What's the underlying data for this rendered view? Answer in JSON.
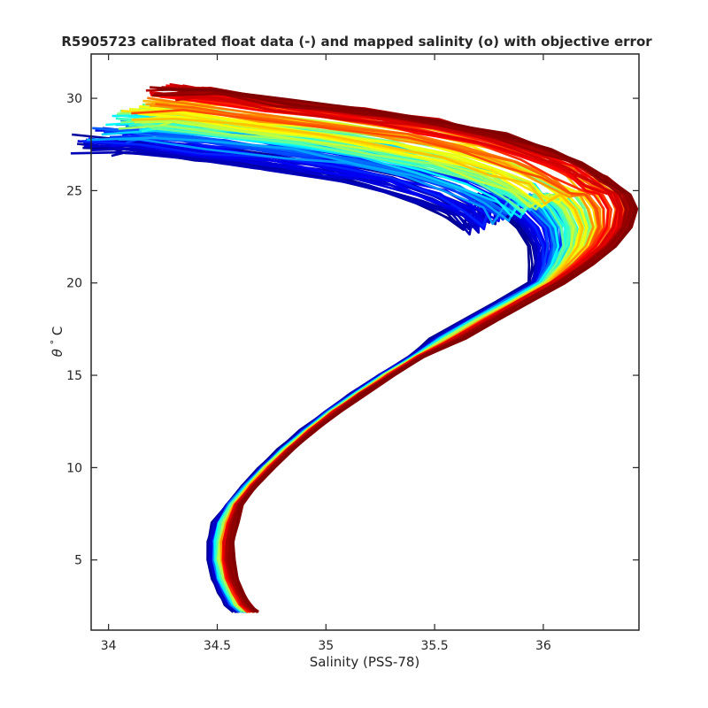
{
  "chart_data": {
    "type": "line",
    "title": "R5905723 calibrated float data (-) and mapped salinity (o) with objective error",
    "xlabel": "Salinity (PSS-78)",
    "ylabel_symbol": "θ",
    "ylabel_degree": "°",
    "ylabel_unit": "C",
    "xlim": [
      33.92,
      36.44
    ],
    "ylim": [
      1.2,
      32.4
    ],
    "xticks": [
      "34",
      "34.5",
      "35",
      "35.5",
      "36"
    ],
    "xtick_values": [
      34,
      34.5,
      35,
      35.5,
      36
    ],
    "yticks": [
      "5",
      "10",
      "15",
      "20",
      "25",
      "30"
    ],
    "ytick_values": [
      5,
      10,
      15,
      20,
      25,
      30
    ],
    "grid": false,
    "legend": "none",
    "colormap": "jet",
    "colormap_stops": [
      "#00008f",
      "#0000ff",
      "#00ffff",
      "#ffff00",
      "#ff0000",
      "#800000"
    ],
    "profile_count": 120,
    "deep_profile": [
      [
        34.64,
        2.2
      ],
      [
        34.6,
        2.6
      ],
      [
        34.57,
        3.2
      ],
      [
        34.54,
        4.0
      ],
      [
        34.52,
        5.0
      ],
      [
        34.52,
        6.0
      ],
      [
        34.54,
        7.0
      ],
      [
        34.58,
        8.0
      ],
      [
        34.65,
        9.0
      ],
      [
        34.73,
        10.0
      ],
      [
        34.82,
        11.0
      ],
      [
        34.92,
        12.0
      ],
      [
        35.03,
        13.0
      ],
      [
        35.15,
        14.0
      ],
      [
        35.28,
        15.0
      ],
      [
        35.42,
        16.0
      ],
      [
        35.57,
        17.0
      ],
      [
        35.72,
        18.0
      ],
      [
        35.87,
        19.0
      ],
      [
        36.02,
        20.0
      ],
      [
        36.15,
        21.0
      ],
      [
        36.26,
        22.0
      ],
      [
        36.33,
        23.0
      ],
      [
        36.35,
        24.0
      ],
      [
        36.33,
        24.8
      ]
    ],
    "upper_profile_start": [
      [
        36.33,
        24.8
      ],
      [
        36.27,
        25.6
      ],
      [
        36.16,
        26.4
      ],
      [
        36.0,
        27.2
      ],
      [
        35.78,
        28.0
      ],
      [
        35.5,
        28.7
      ],
      [
        35.15,
        29.3
      ],
      [
        34.8,
        29.8
      ],
      [
        34.45,
        30.4
      ]
    ],
    "upper_profile_end": [
      [
        35.7,
        22.0
      ],
      [
        35.68,
        22.8
      ],
      [
        35.6,
        23.6
      ],
      [
        35.45,
        24.4
      ],
      [
        35.25,
        25.2
      ],
      [
        35.0,
        25.8
      ],
      [
        34.72,
        26.3
      ],
      [
        34.4,
        26.8
      ],
      [
        34.1,
        27.2
      ]
    ]
  }
}
